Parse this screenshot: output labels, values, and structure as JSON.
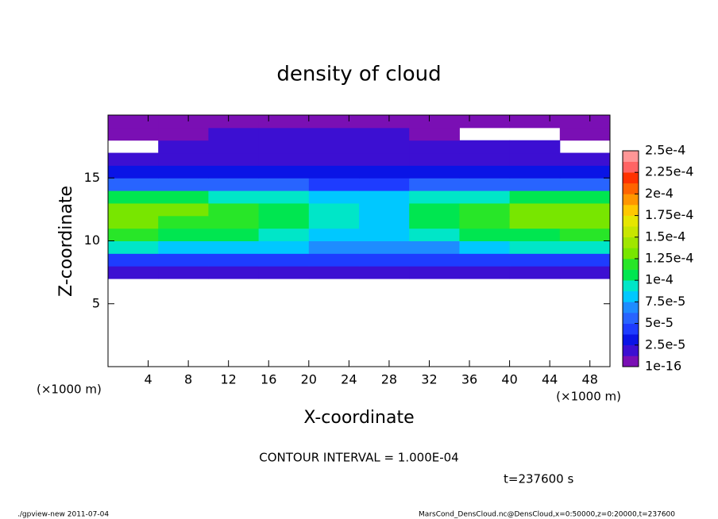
{
  "chart_data": {
    "type": "heatmap",
    "title": "density of cloud",
    "xlabel": "X-coordinate",
    "ylabel": "Z-coordinate",
    "xunit": "(×1000 m)",
    "yunit": "(×1000 m)",
    "xlim": [
      0,
      50
    ],
    "ylim": [
      0,
      20
    ],
    "xticks": [
      4,
      8,
      12,
      16,
      20,
      24,
      28,
      32,
      36,
      40,
      44,
      48
    ],
    "yticks": [
      5,
      10,
      15
    ],
    "x_edges": [
      0,
      5,
      10,
      15,
      20,
      25,
      30,
      35,
      40,
      45,
      50
    ],
    "y_edges": [
      7,
      8,
      9,
      10,
      11,
      12,
      13,
      14,
      15,
      16,
      17,
      18,
      19,
      20
    ],
    "values": [
      [
        2e-05,
        2e-05,
        2e-05,
        2e-05,
        2e-05,
        1.5e-05,
        2e-05,
        2e-05,
        2e-05,
        2e-05
      ],
      [
        5e-05,
        5e-05,
        5e-05,
        4.5e-05,
        4e-05,
        4e-05,
        4.5e-05,
        5e-05,
        5e-05,
        5e-05
      ],
      [
        9e-05,
        8.5e-05,
        8.5e-05,
        8e-05,
        7e-05,
        6.5e-05,
        7.5e-05,
        8.5e-05,
        9e-05,
        9e-05
      ],
      [
        0.000115,
        0.00011,
        0.000105,
        9.5e-05,
        8.5e-05,
        8e-05,
        9.5e-05,
        0.000105,
        0.00011,
        0.000115
      ],
      [
        0.00013,
        0.000125,
        0.00012,
        0.000105,
        9e-05,
        8.5e-05,
        0.000105,
        0.00012,
        0.00013,
        0.00013
      ],
      [
        0.000135,
        0.00013,
        0.000125,
        0.00011,
        9e-05,
        8.5e-05,
        0.000105,
        0.000125,
        0.00013,
        0.00013
      ],
      [
        0.00011,
        0.000105,
        0.0001,
        9e-05,
        8e-05,
        8e-05,
        9e-05,
        0.0001,
        0.000105,
        0.000105
      ],
      [
        6e-05,
        6e-05,
        5.5e-05,
        5.5e-05,
        5e-05,
        5e-05,
        5.5e-05,
        6e-05,
        6e-05,
        6e-05
      ],
      [
        3.5e-05,
        3.5e-05,
        3e-05,
        3e-05,
        3e-05,
        3e-05,
        3.5e-05,
        3.5e-05,
        3.5e-05,
        3.5e-05
      ],
      [
        2.5e-05,
        2.5e-05,
        2.5e-05,
        2.5e-05,
        2.5e-05,
        2.5e-05,
        2.5e-05,
        2.5e-05,
        2e-05,
        2e-05
      ],
      [
        null,
        1.5e-05,
        2e-05,
        2e-05,
        2e-05,
        2e-05,
        1.5e-05,
        1.5e-05,
        1.5e-05,
        null
      ],
      [
        1e-05,
        1e-05,
        1.5e-05,
        1.5e-05,
        1.5e-05,
        1.5e-05,
        1e-05,
        null,
        null,
        1e-05
      ],
      [
        1e-05,
        1e-05,
        1e-05,
        1e-05,
        1e-05,
        1e-05,
        1e-05,
        1e-05,
        1e-05,
        1e-05
      ]
    ],
    "colorbar": {
      "colors": [
        "#7a0fb4",
        "#3c0fd2",
        "#0a14e6",
        "#1e3cff",
        "#2864ff",
        "#1e8cff",
        "#00c8ff",
        "#00e6c8",
        "#00e650",
        "#28e628",
        "#78e600",
        "#a0e600",
        "#c8e600",
        "#e6e600",
        "#ffc800",
        "#ff9600",
        "#ff6400",
        "#ff3200",
        "#ff6464",
        "#ff9696"
      ],
      "ticks": [
        1e-16,
        {
          "value": 2.5e-05,
          "label": "2.5e-5"
        },
        {
          "value": 5e-05,
          "label": "5e-5"
        },
        {
          "value": 7.5e-05,
          "label": "7.5e-5"
        },
        {
          "value": 0.0001,
          "label": "1e-4"
        },
        {
          "value": 0.000125,
          "label": "1.25e-4"
        },
        {
          "value": 0.00015,
          "label": "1.5e-4"
        },
        {
          "value": 0.000175,
          "label": "1.75e-4"
        },
        {
          "value": 0.0002,
          "label": "2e-4"
        },
        {
          "value": 0.000225,
          "label": "2.25e-4"
        },
        {
          "value": 0.00025,
          "label": "2.5e-4"
        }
      ]
    },
    "contour_note": "CONTOUR INTERVAL = 1.000E-04",
    "time_note": "t=237600 s",
    "footer_left": "./gpview-new  2011-07-04",
    "footer_right": "MarsCond_DensCloud.nc@DensCloud,x=0:50000,z=0:20000,t=237600"
  }
}
